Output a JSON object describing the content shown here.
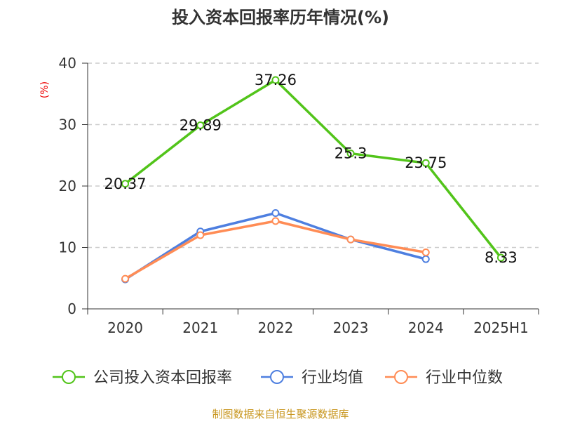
{
  "chart_data": {
    "type": "line",
    "title": "投入资本回报率历年情况(%)",
    "ylabel": "(%)",
    "categories": [
      "2020",
      "2021",
      "2022",
      "2023",
      "2024",
      "2025H1"
    ],
    "ylim": [
      0,
      40
    ],
    "yticks": [
      0,
      10,
      20,
      30,
      40
    ],
    "grid": true,
    "legend_position": "bottom",
    "series": [
      {
        "name": "公司投入资本回报率",
        "color": "#52c41a",
        "values": [
          20.37,
          29.89,
          37.26,
          25.3,
          23.75,
          8.33
        ],
        "labels": [
          "20.37",
          "29.89",
          "37.26",
          "25.3",
          "23.75",
          "8.33"
        ]
      },
      {
        "name": "行业均值",
        "color": "#4e7fe0",
        "values": [
          4.8,
          12.6,
          15.6,
          11.3,
          8.1,
          null
        ]
      },
      {
        "name": "行业中位数",
        "color": "#ff8c55",
        "values": [
          4.9,
          12.0,
          14.3,
          11.3,
          9.2,
          null
        ]
      }
    ],
    "source": "制图数据来自恒生聚源数据库"
  }
}
